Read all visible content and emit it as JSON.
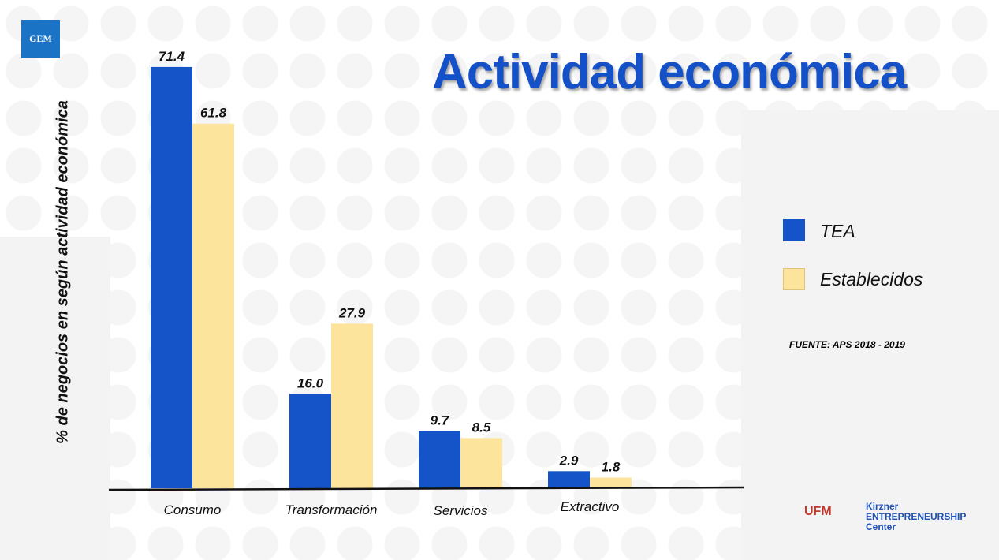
{
  "title": "Actividad económica",
  "source": "FUENTE: APS 2018 - 2019",
  "logos": {
    "gem": "GEM",
    "ufm": "UFM",
    "kirzner": "Kirzner ENTREPRENEURSHIP Center"
  },
  "chart_data": {
    "type": "bar",
    "title": "Actividad económica",
    "xlabel": "",
    "ylabel": "% de negocios en según actividad económica",
    "categories": [
      "Consumo",
      "Transformación",
      "Servicios",
      "Extractivo"
    ],
    "series": [
      {
        "name": "TEA",
        "color": "#1453c8",
        "values": [
          71.4,
          16.0,
          9.7,
          2.9
        ]
      },
      {
        "name": "Establecidos",
        "color": "#fde49d",
        "values": [
          61.8,
          27.9,
          8.5,
          1.8
        ]
      }
    ],
    "ylim": [
      0,
      71.4
    ],
    "grid": false,
    "legend": "right"
  }
}
